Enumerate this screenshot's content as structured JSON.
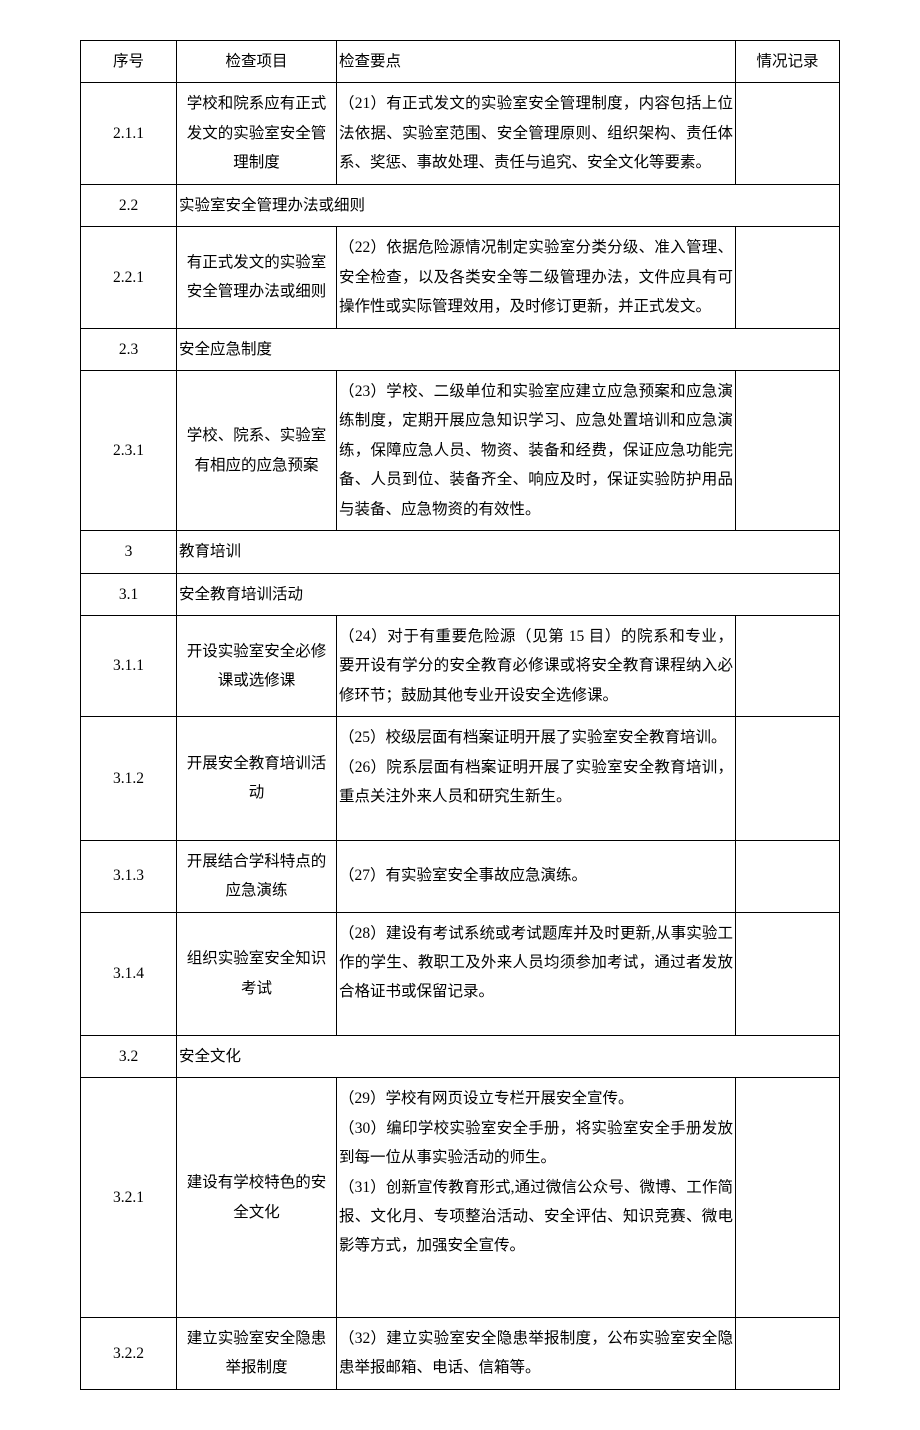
{
  "headers": {
    "num": "序号",
    "item": "检查项目",
    "point": "检查要点",
    "record": "情况记录"
  },
  "rows": [
    {
      "type": "data",
      "num": "2.1.1",
      "item": "学校和院系应有正式发文的实验室安全管理制度",
      "point": "（21）有正式发文的实验室安全管理制度，内容包括上位法依据、实验室范围、安全管理原则、组织架构、责任体系、奖惩、事故处理、责任与追究、安全文化等要素。"
    },
    {
      "type": "section",
      "num": "2.2",
      "item": "实验室安全管理办法或细则"
    },
    {
      "type": "data",
      "num": "2.2.1",
      "item": "有正式发文的实验室安全管理办法或细则",
      "point": "（22）依据危险源情况制定实验室分类分级、准入管理、安全检查，以及各类安全等二级管理办法，文件应具有可操作性或实际管理效用，及时修订更新，并正式发文。"
    },
    {
      "type": "section",
      "num": "2.3",
      "item": "安全应急制度"
    },
    {
      "type": "data",
      "num": "2.3.1",
      "item": "学校、院系、实验室有相应的应急预案",
      "point": "（23）学校、二级单位和实验室应建立应急预案和应急演练制度，定期开展应急知识学习、应急处置培训和应急演练，保障应急人员、物资、装备和经费，保证应急功能完备、人员到位、装备齐全、响应及时，保证实验防护用品与装备、应急物资的有效性。"
    },
    {
      "type": "section",
      "num": "3",
      "item": "教育培训"
    },
    {
      "type": "section",
      "num": "3.1",
      "item": "安全教育培训活动"
    },
    {
      "type": "data",
      "num": "3.1.1",
      "item": "开设实验室安全必修课或选修课",
      "point": "（24）对于有重要危险源（见第 15 目）的院系和专业，要开设有学分的安全教育必修课或将安全教育课程纳入必修环节；鼓励其他专业开设安全选修课。"
    },
    {
      "type": "data",
      "num": "3.1.2",
      "item": "开展安全教育培训活动",
      "point": "（25）校级层面有档案证明开展了实验室安全教育培训。\n（26）院系层面有档案证明开展了实验室安全教育培训，重点关注外来人员和研究生新生。",
      "extraHeight": true
    },
    {
      "type": "data",
      "num": "3.1.3",
      "item": "开展结合学科特点的应急演练",
      "point": "（27）有实验室安全事故应急演练。"
    },
    {
      "type": "data",
      "num": "3.1.4",
      "item": "组织实验室安全知识考试",
      "point": "（28）建设有考试系统或考试题库并及时更新,从事实验工作的学生、教职工及外来人员均须参加考试，通过者发放合格证书或保留记录。",
      "extraHeight": true
    },
    {
      "type": "section",
      "num": "3.2",
      "item": "安全文化"
    },
    {
      "type": "data",
      "num": "3.2.1",
      "item": "建设有学校特色的安全文化",
      "point": "（29）学校有网页设立专栏开展安全宣传。\n（30）编印学校实验室安全手册，将实验室安全手册发放到每一位从事实验活动的师生。\n（31）创新宣传教育形式,通过微信公众号、微博、工作简报、文化月、专项整治活动、安全评估、知识竞赛、微电影等方式，加强安全宣传。",
      "tallRow": true
    },
    {
      "type": "data",
      "num": "3.2.2",
      "item": "建立实验室安全隐患举报制度",
      "point": "（32）建立实验室安全隐患举报制度，公布实验室安全隐患举报邮箱、电话、信箱等。"
    }
  ]
}
